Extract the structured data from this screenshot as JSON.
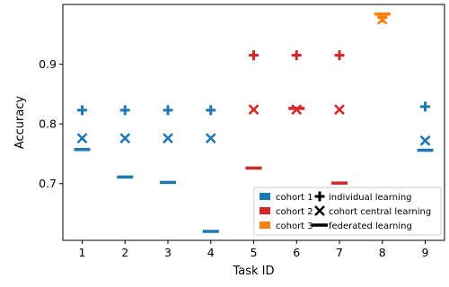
{
  "chart_data": {
    "type": "scatter",
    "xlabel": "Task ID",
    "ylabel": "Accuracy",
    "x_ticks": [
      1,
      2,
      3,
      4,
      5,
      6,
      7,
      8,
      9
    ],
    "y_ticks": [
      0.7,
      0.8,
      0.9
    ],
    "xlim": [
      0.55,
      9.45
    ],
    "ylim": [
      0.605,
      1.0
    ],
    "grid": false,
    "legend_placement": "lower-right",
    "cohorts": [
      {
        "name": "cohort 1",
        "color": "#1f77b4",
        "tasks": [
          1,
          2,
          3,
          4,
          9
        ]
      },
      {
        "name": "cohort 2",
        "color": "#d62728",
        "tasks": [
          5,
          6,
          7
        ]
      },
      {
        "name": "cohort 3",
        "color": "#ff7f0e",
        "tasks": [
          8
        ]
      }
    ],
    "methods": [
      {
        "name": "individual learning",
        "marker": "plus"
      },
      {
        "name": "cohort central learning",
        "marker": "x"
      },
      {
        "name": "federated learning",
        "marker": "dash"
      }
    ],
    "points": [
      {
        "task": 1,
        "cohort": "cohort 1",
        "individual": 0.823,
        "central": 0.776,
        "federated": 0.757
      },
      {
        "task": 2,
        "cohort": "cohort 1",
        "individual": 0.823,
        "central": 0.776,
        "federated": 0.711
      },
      {
        "task": 3,
        "cohort": "cohort 1",
        "individual": 0.823,
        "central": 0.776,
        "federated": 0.702
      },
      {
        "task": 4,
        "cohort": "cohort 1",
        "individual": 0.823,
        "central": 0.776,
        "federated": 0.62
      },
      {
        "task": 5,
        "cohort": "cohort 2",
        "individual": 0.915,
        "central": 0.824,
        "federated": 0.726
      },
      {
        "task": 6,
        "cohort": "cohort 2",
        "individual": 0.915,
        "central": 0.824,
        "federated": 0.826
      },
      {
        "task": 7,
        "cohort": "cohort 2",
        "individual": 0.915,
        "central": 0.824,
        "federated": 0.701
      },
      {
        "task": 8,
        "cohort": "cohort 3",
        "individual": 0.978,
        "central": 0.975,
        "federated": 0.984
      },
      {
        "task": 9,
        "cohort": "cohort 1",
        "individual": 0.829,
        "central": 0.772,
        "federated": 0.756
      }
    ]
  }
}
